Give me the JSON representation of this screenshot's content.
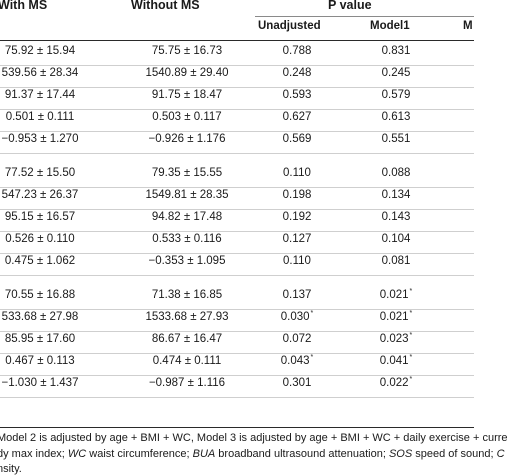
{
  "header": {
    "with_ms": "With MS",
    "without_ms": "Without MS",
    "p_value": "P value",
    "unadjusted": "Unadjusted",
    "model1": "Model1",
    "model_next_cut": "M"
  },
  "groups": [
    {
      "rows": [
        {
          "with": "75.92 ± 15.94",
          "without": "75.75 ± 16.73",
          "unadj": "0.788",
          "unadj_sig": false,
          "model1": "0.831",
          "model1_sig": false
        },
        {
          "with": "539.56 ± 28.34",
          "without": "1540.89 ± 29.40",
          "unadj": "0.248",
          "unadj_sig": false,
          "model1": "0.245",
          "model1_sig": false
        },
        {
          "with": "91.37 ± 17.44",
          "without": "91.75 ± 18.47",
          "unadj": "0.593",
          "unadj_sig": false,
          "model1": "0.579",
          "model1_sig": false
        },
        {
          "with": "0.501 ± 0.111",
          "without": "0.503 ± 0.117",
          "unadj": "0.627",
          "unadj_sig": false,
          "model1": "0.613",
          "model1_sig": false
        },
        {
          "with": "−0.953 ± 1.270",
          "without": "−0.926 ± 1.176",
          "unadj": "0.569",
          "unadj_sig": false,
          "model1": "0.551",
          "model1_sig": false
        }
      ]
    },
    {
      "rows": [
        {
          "with": "77.52 ± 15.50",
          "without": "79.35 ± 15.55",
          "unadj": "0.110",
          "unadj_sig": false,
          "model1": "0.088",
          "model1_sig": false
        },
        {
          "with": "547.23 ± 26.37",
          "without": "1549.81 ± 28.35",
          "unadj": "0.198",
          "unadj_sig": false,
          "model1": "0.134",
          "model1_sig": false
        },
        {
          "with": "95.15 ± 16.57",
          "without": "94.82 ± 17.48",
          "unadj": "0.192",
          "unadj_sig": false,
          "model1": "0.143",
          "model1_sig": false
        },
        {
          "with": "0.526 ± 0.110",
          "without": "0.533 ± 0.116",
          "unadj": "0.127",
          "unadj_sig": false,
          "model1": "0.104",
          "model1_sig": false
        },
        {
          "with": "0.475 ± 1.062",
          "without": "−0.353 ± 1.095",
          "unadj": "0.110",
          "unadj_sig": false,
          "model1": "0.081",
          "model1_sig": false
        }
      ]
    },
    {
      "rows": [
        {
          "with": "70.55 ± 16.88",
          "without": "71.38 ± 16.85",
          "unadj": "0.137",
          "unadj_sig": false,
          "model1": "0.021",
          "model1_sig": true
        },
        {
          "with": "533.68 ± 27.98",
          "without": "1533.68 ± 27.93",
          "unadj": "0.030",
          "unadj_sig": true,
          "model1": "0.021",
          "model1_sig": true
        },
        {
          "with": "85.95 ± 17.60",
          "without": "86.67 ± 16.47",
          "unadj": "0.072",
          "unadj_sig": false,
          "model1": "0.023",
          "model1_sig": true
        },
        {
          "with": "0.467 ± 0.113",
          "without": "0.474 ± 0.111",
          "unadj": "0.043",
          "unadj_sig": true,
          "model1": "0.041",
          "model1_sig": true
        },
        {
          "with": "−1.030 ± 1.437",
          "without": "−0.987 ± 1.116",
          "unadj": "0.301",
          "unadj_sig": false,
          "model1": "0.022",
          "model1_sig": true
        }
      ]
    }
  ],
  "significance_mark": "*",
  "footnotes": {
    "line1": "Model 2 is adjusted by age + BMI + WC, Model 3 is adjusted by age + BMI + WC + daily exercise + curre",
    "line2_parts": [
      {
        "text": "dy max index; ",
        "italic": false
      },
      {
        "text": "WC",
        "italic": true
      },
      {
        "text": " waist circumference; ",
        "italic": false
      },
      {
        "text": "BUA",
        "italic": true
      },
      {
        "text": " broadband ultrasound attenuation; ",
        "italic": false
      },
      {
        "text": "SOS",
        "italic": true
      },
      {
        "text": " speed of sound; ",
        "italic": false
      },
      {
        "text": "C",
        "italic": true
      }
    ],
    "line3": "nsity."
  }
}
